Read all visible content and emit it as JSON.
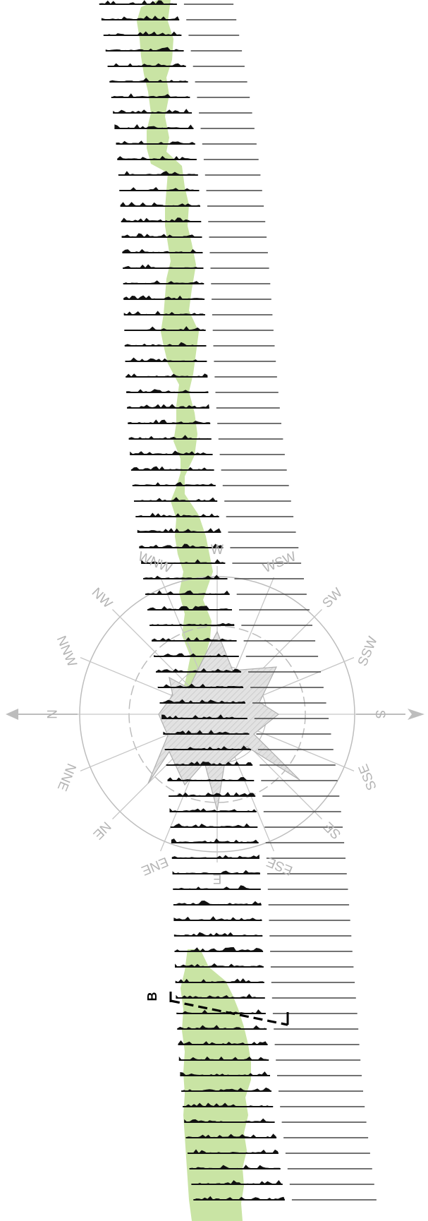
{
  "diagram": {
    "section_marker": "B",
    "compass_points": [
      "N",
      "NNE",
      "NE",
      "ENE",
      "E",
      "ESE",
      "SE",
      "SSE",
      "S",
      "SSW",
      "SW",
      "WSW",
      "W",
      "WNW",
      "NW",
      "NNW"
    ],
    "colors": {
      "vegetation": "#c9e4a4",
      "compass": "#bdbdbd",
      "rose_fill": "#dcdcdc",
      "profile": "#111111",
      "section_line": "#000000"
    },
    "profile_count": 78
  }
}
